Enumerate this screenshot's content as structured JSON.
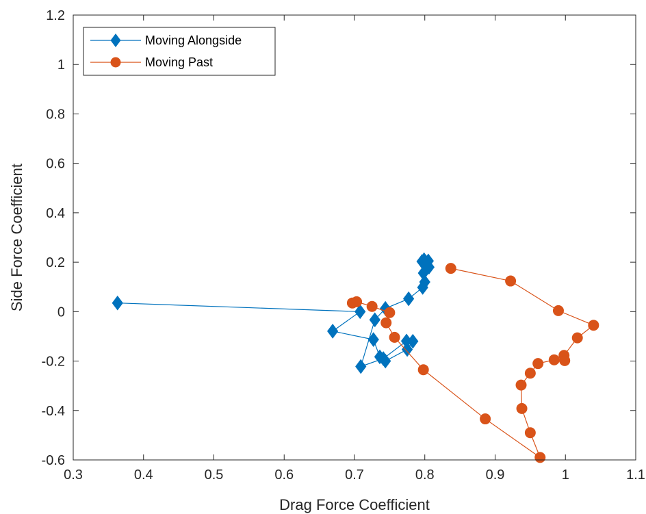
{
  "chart_data": {
    "type": "line",
    "title": "",
    "xlabel": "Drag Force Coefficient",
    "ylabel": "Side Force Coefficient",
    "xlim": [
      0.3,
      1.1
    ],
    "ylim": [
      -0.6,
      1.2
    ],
    "xticks": [
      0.3,
      0.4,
      0.5,
      0.6,
      0.7,
      0.8,
      0.9,
      1.0,
      1.1
    ],
    "xtick_labels": [
      "0.3",
      "0.4",
      "0.5",
      "0.6",
      "0.7",
      "0.8",
      "0.9",
      "1",
      "1.1"
    ],
    "yticks": [
      -0.6,
      -0.4,
      -0.2,
      0,
      0.2,
      0.4,
      0.6,
      0.8,
      1.0,
      1.2
    ],
    "ytick_labels": [
      "-0.6",
      "-0.4",
      "-0.2",
      "0",
      "0.2",
      "0.4",
      "0.6",
      "0.8",
      "1",
      "1.2"
    ],
    "grid": false,
    "legend_position": "top-left",
    "series": [
      {
        "name": "Moving Alongside",
        "color": "#0072BD",
        "marker": "diamond",
        "x": [
          0.363,
          0.708,
          0.669,
          0.727,
          0.736,
          0.744,
          0.775,
          0.783,
          0.774,
          0.741,
          0.709,
          0.729,
          0.744,
          0.777,
          0.797,
          0.8,
          0.798,
          0.806,
          0.805,
          0.799,
          0.796
        ],
        "y": [
          0.035,
          0.0,
          -0.079,
          -0.113,
          -0.183,
          -0.2,
          -0.153,
          -0.12,
          -0.119,
          -0.19,
          -0.222,
          -0.033,
          0.013,
          0.052,
          0.098,
          0.12,
          0.156,
          0.18,
          0.205,
          0.21,
          0.203
        ]
      },
      {
        "name": "Moving Past",
        "color": "#D95319",
        "marker": "circle",
        "x": [
          0.837,
          0.922,
          0.99,
          1.04,
          1.017,
          0.998,
          0.999,
          0.984,
          0.961,
          0.95,
          0.937,
          0.938,
          0.95,
          0.964,
          0.886,
          0.798,
          0.757,
          0.745,
          0.75,
          0.725,
          0.703,
          0.697
        ],
        "y": [
          0.175,
          0.124,
          0.004,
          -0.055,
          -0.106,
          -0.177,
          -0.198,
          -0.195,
          -0.21,
          -0.249,
          -0.297,
          -0.392,
          -0.49,
          -0.59,
          -0.434,
          -0.235,
          -0.104,
          -0.045,
          -0.004,
          0.021,
          0.04,
          0.035
        ]
      }
    ]
  }
}
